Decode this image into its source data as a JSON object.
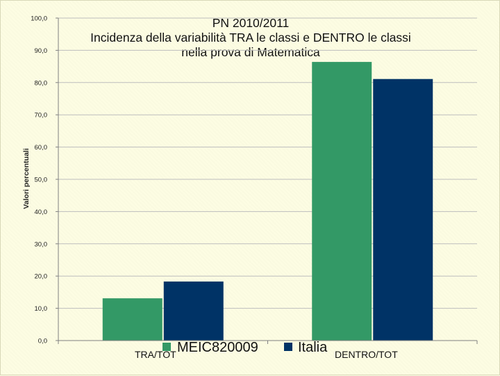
{
  "chart_data": {
    "type": "bar",
    "title_lines": [
      "PN 2010/2011",
      "Incidenza della variabilità TRA le classi e DENTRO le classi",
      "nella prova di Matematica"
    ],
    "ylabel": "Valori percentuali",
    "xlabel": "",
    "ylim": [
      0,
      100
    ],
    "ytick_labels": [
      "0,0",
      "10,0",
      "20,0",
      "30,0",
      "40,0",
      "50,0",
      "60,0",
      "70,0",
      "80,0",
      "90,0",
      "100,0"
    ],
    "yticks": [
      0,
      10,
      20,
      30,
      40,
      50,
      60,
      70,
      80,
      90,
      100
    ],
    "grid": true,
    "categories": [
      "TRA/TOT",
      "DENTRO/TOT"
    ],
    "series": [
      {
        "name": "MEIC820009",
        "values": [
          13.1,
          86.4
        ],
        "color": "#339966"
      },
      {
        "name": "Italia",
        "values": [
          18.3,
          81.1
        ],
        "color": "#003366"
      }
    ],
    "legend_position": "bottom-center"
  }
}
